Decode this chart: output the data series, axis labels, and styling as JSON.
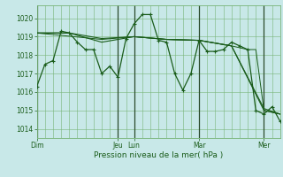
{
  "bg_color": "#c8e8e8",
  "grid_color": "#78b478",
  "line_color": "#1a5c1a",
  "vline_color": "#2a4a2a",
  "xlabel": "Pression niveau de la mer( hPa )",
  "ylim": [
    1013.5,
    1020.7
  ],
  "yticks": [
    1014,
    1015,
    1016,
    1017,
    1018,
    1019,
    1020
  ],
  "day_positions": [
    0,
    60,
    72,
    120,
    168
  ],
  "day_labels": [
    "Dim",
    "Jeu",
    "Lun",
    "Mar",
    "Mer"
  ],
  "xlim": [
    0,
    180
  ],
  "series": [
    {
      "x": [
        0,
        6,
        12,
        18,
        24,
        30,
        36,
        42,
        48,
        54,
        60,
        66,
        72,
        78,
        84,
        90,
        96,
        102,
        108,
        114,
        120,
        126,
        132,
        138,
        144,
        150,
        156,
        162,
        168,
        174,
        180
      ],
      "y": [
        1016.3,
        1017.5,
        1017.7,
        1019.3,
        1019.2,
        1018.7,
        1018.3,
        1018.3,
        1017.0,
        1017.4,
        1016.8,
        1018.9,
        1019.7,
        1020.2,
        1020.2,
        1018.8,
        1018.7,
        1017.0,
        1016.1,
        1017.0,
        1018.8,
        1018.2,
        1018.2,
        1018.3,
        1018.7,
        1018.5,
        1018.3,
        1015.0,
        1014.8,
        1015.2,
        1014.4
      ],
      "marker": "+",
      "lw": 0.9,
      "ms": 3.0
    },
    {
      "x": [
        0,
        24,
        48,
        72,
        96,
        120,
        144,
        168,
        180
      ],
      "y": [
        1019.2,
        1019.2,
        1018.9,
        1019.0,
        1018.85,
        1018.8,
        1018.5,
        1015.0,
        1014.8
      ],
      "marker": null,
      "lw": 0.8,
      "ms": 0
    },
    {
      "x": [
        0,
        24,
        48,
        72,
        96,
        120,
        144,
        168,
        180
      ],
      "y": [
        1019.2,
        1019.2,
        1018.7,
        1019.0,
        1018.85,
        1018.8,
        1018.5,
        1015.1,
        1014.8
      ],
      "marker": null,
      "lw": 0.8,
      "ms": 0
    },
    {
      "x": [
        0,
        48,
        72,
        96,
        120,
        144,
        156,
        162,
        168,
        180
      ],
      "y": [
        1019.2,
        1018.85,
        1019.0,
        1018.85,
        1018.8,
        1018.5,
        1018.3,
        1018.3,
        1015.0,
        1014.8
      ],
      "marker": null,
      "lw": 0.7,
      "ms": 0
    }
  ]
}
